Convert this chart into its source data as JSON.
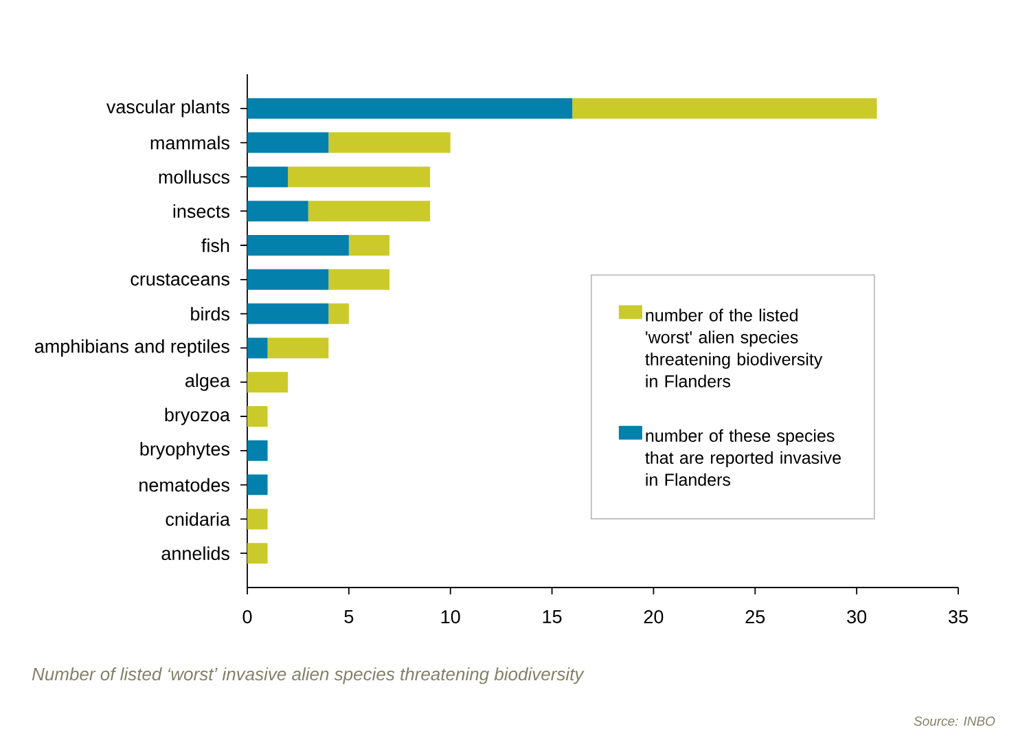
{
  "chart_data": {
    "type": "bar",
    "orientation": "horizontal",
    "stacked": true,
    "categories": [
      "vascular plants",
      "mammals",
      "molluscs",
      "insects",
      "fish",
      "crustaceans",
      "birds",
      "amphibians and reptiles",
      "algea",
      "bryozoa",
      "bryophytes",
      "nematodes",
      "cnidaria",
      "annelids"
    ],
    "series": [
      {
        "name": "number of these species that are reported invasive in Flanders",
        "color": "#0380ac",
        "values": [
          16,
          4,
          2,
          3,
          5,
          4,
          4,
          1,
          0,
          0,
          1,
          1,
          0,
          0
        ]
      },
      {
        "name": "number of the listed 'worst' alien species threatening biodiversity in Flanders",
        "color": "#cbca2b",
        "values": [
          15,
          6,
          7,
          6,
          2,
          3,
          1,
          3,
          2,
          1,
          0,
          0,
          1,
          1
        ]
      }
    ],
    "xlim": [
      0,
      35
    ],
    "xticks": [
      0,
      5,
      10,
      15,
      20,
      25,
      30,
      35
    ],
    "legend": "bottom right",
    "annotations": [
      "Number of listed ‘worst’ invasive alien species threatening biodiversity",
      "Source: INBO"
    ]
  }
}
